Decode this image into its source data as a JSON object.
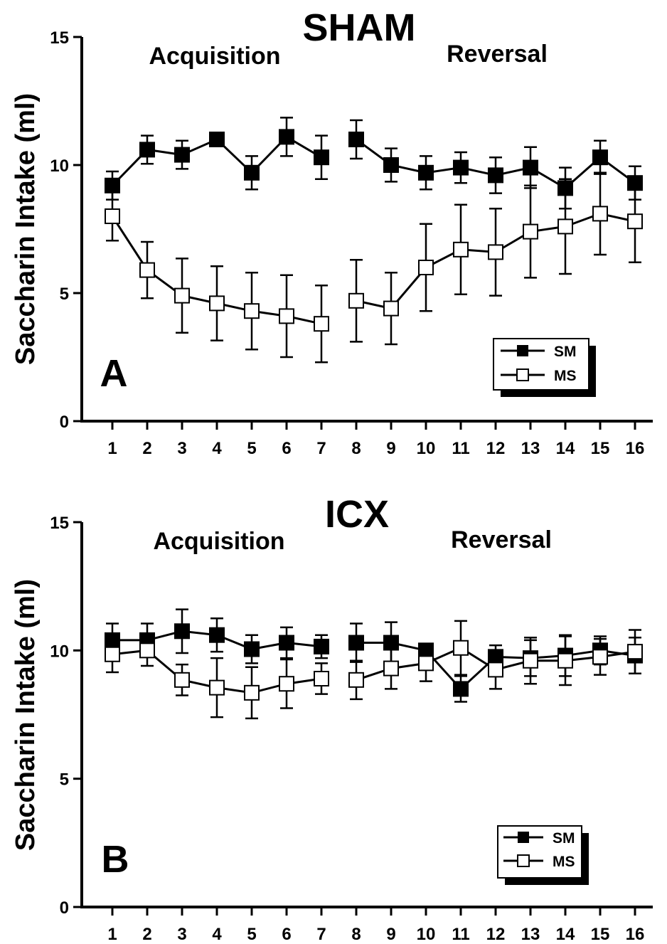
{
  "chart_data": [
    {
      "type": "line",
      "title": "SHAM",
      "panel_label": "A",
      "phase_labels": [
        "Acquisition",
        "Reversal"
      ],
      "xlabel": "",
      "ylabel": "Saccharin Intake (ml)",
      "ylim": [
        0,
        15
      ],
      "yticks": [
        "0",
        "5",
        "10",
        "15"
      ],
      "categories": [
        "1",
        "2",
        "3",
        "4",
        "5",
        "6",
        "7",
        "8",
        "9",
        "10",
        "11",
        "12",
        "13",
        "14",
        "15",
        "16"
      ],
      "legend_position": "bottom-right",
      "series": [
        {
          "name": "SM",
          "marker": "filled-square",
          "values": [
            9.2,
            10.6,
            10.4,
            11.0,
            9.7,
            11.1,
            10.3,
            11.0,
            10.0,
            9.7,
            9.9,
            9.6,
            9.9,
            9.1,
            10.3,
            9.3
          ],
          "errors": [
            0.55,
            0.55,
            0.55,
            0.25,
            0.65,
            0.75,
            0.85,
            0.75,
            0.65,
            0.65,
            0.6,
            0.7,
            0.8,
            0.8,
            0.65,
            0.65
          ]
        },
        {
          "name": "MS",
          "marker": "open-square",
          "values": [
            8.0,
            5.9,
            4.9,
            4.6,
            4.3,
            4.1,
            3.8,
            4.7,
            4.4,
            6.0,
            6.7,
            6.6,
            7.4,
            7.6,
            8.1,
            7.8
          ],
          "errors": [
            0.95,
            1.1,
            1.45,
            1.45,
            1.5,
            1.6,
            1.5,
            1.6,
            1.4,
            1.7,
            1.75,
            1.7,
            1.8,
            1.85,
            1.6,
            1.6
          ]
        }
      ]
    },
    {
      "type": "line",
      "title": "ICX",
      "panel_label": "B",
      "phase_labels": [
        "Acquisition",
        "Reversal"
      ],
      "xlabel": "",
      "ylabel": "Saccharin Intake (ml)",
      "ylim": [
        0,
        15
      ],
      "yticks": [
        "0",
        "5",
        "10",
        "15"
      ],
      "categories": [
        "1",
        "2",
        "3",
        "4",
        "5",
        "6",
        "7",
        "8",
        "9",
        "10",
        "11",
        "12",
        "13",
        "14",
        "15",
        "16"
      ],
      "legend_position": "bottom-right",
      "series": [
        {
          "name": "SM",
          "marker": "filled-square",
          "values": [
            10.4,
            10.4,
            10.75,
            10.6,
            10.05,
            10.3,
            10.15,
            10.3,
            10.3,
            10.0,
            8.5,
            9.75,
            9.7,
            9.8,
            10.0,
            9.8
          ],
          "errors": [
            0.65,
            0.65,
            0.85,
            0.65,
            0.55,
            0.6,
            0.45,
            0.75,
            0.8,
            0.2,
            0.5,
            0.45,
            0.7,
            0.8,
            0.55,
            0.7
          ]
        },
        {
          "name": "MS",
          "marker": "open-square",
          "values": [
            9.85,
            10.0,
            8.85,
            8.55,
            8.35,
            8.7,
            8.9,
            8.85,
            9.3,
            9.5,
            10.1,
            9.25,
            9.6,
            9.6,
            9.75,
            9.95
          ],
          "errors": [
            0.7,
            0.6,
            0.6,
            1.15,
            1.0,
            0.95,
            0.6,
            0.75,
            0.8,
            0.7,
            1.05,
            0.75,
            0.9,
            0.95,
            0.7,
            0.85
          ]
        }
      ]
    }
  ]
}
